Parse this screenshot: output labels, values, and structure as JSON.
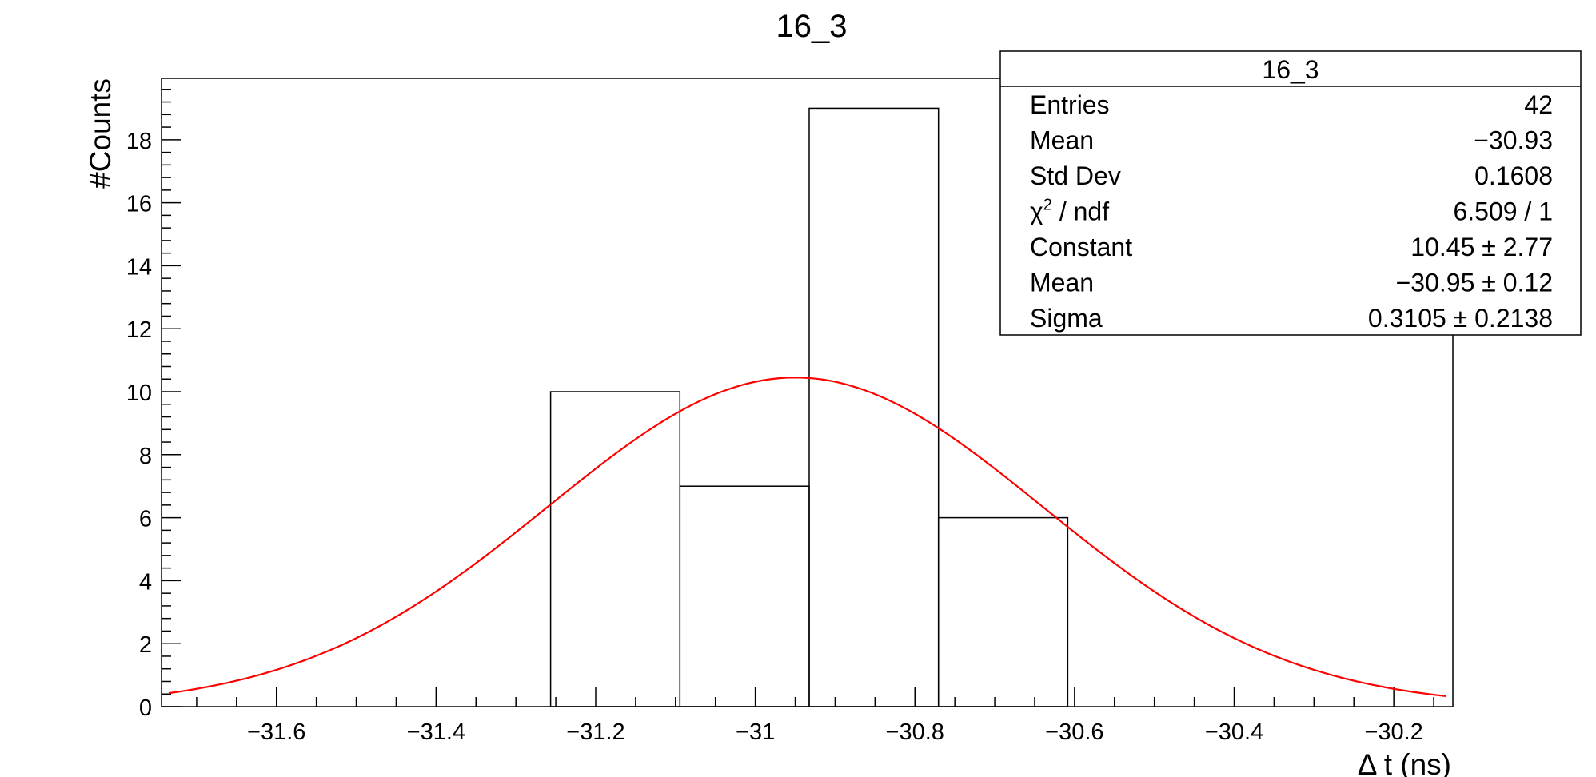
{
  "chart_data": {
    "type": "bar",
    "title": "16_3",
    "xlabel": "Δ t (ns)",
    "ylabel": "#Counts",
    "xlim": [
      -31.744,
      -30.126
    ],
    "ylim": [
      0,
      19.95
    ],
    "x_ticks": [
      -31.6,
      -31.4,
      -31.2,
      -31.0,
      -30.8,
      -30.6,
      -30.4,
      -30.2
    ],
    "x_tick_labels": [
      "−31.6",
      "−31.4",
      "−31.2",
      "−31",
      "−30.8",
      "−30.6",
      "−30.4",
      "−30.2"
    ],
    "y_ticks": [
      0,
      2,
      4,
      6,
      8,
      10,
      12,
      14,
      16,
      18
    ],
    "y_tick_labels": [
      "0",
      "2",
      "4",
      "6",
      "8",
      "10",
      "12",
      "14",
      "16",
      "18"
    ],
    "grid": false,
    "histogram": {
      "bin_edges": [
        -31.2565,
        -31.0945,
        -30.9325,
        -30.7705,
        -30.6085
      ],
      "counts": [
        10,
        7,
        19,
        6
      ],
      "color": "#000000"
    },
    "fit": {
      "function": "gaus",
      "constant": 10.45,
      "mean": -30.95,
      "sigma": 0.3105,
      "color": "#ff0000"
    },
    "legend_position": "top-right",
    "stats_box": {
      "title": "16_3",
      "rows": [
        {
          "label": "Entries",
          "value": "42"
        },
        {
          "label": "Mean",
          "value": "−30.93"
        },
        {
          "label": "Std Dev",
          "value": "0.1608"
        },
        {
          "label": "χ",
          "sup": "2",
          "label_rest": " / ndf",
          "value": "6.509 / 1"
        },
        {
          "label": "Constant",
          "value": "10.45 ± 2.77"
        },
        {
          "label": "Mean",
          "value": "−30.95 ± 0.12"
        },
        {
          "label": "Sigma",
          "value": "0.3105 ± 0.2138"
        }
      ]
    }
  }
}
